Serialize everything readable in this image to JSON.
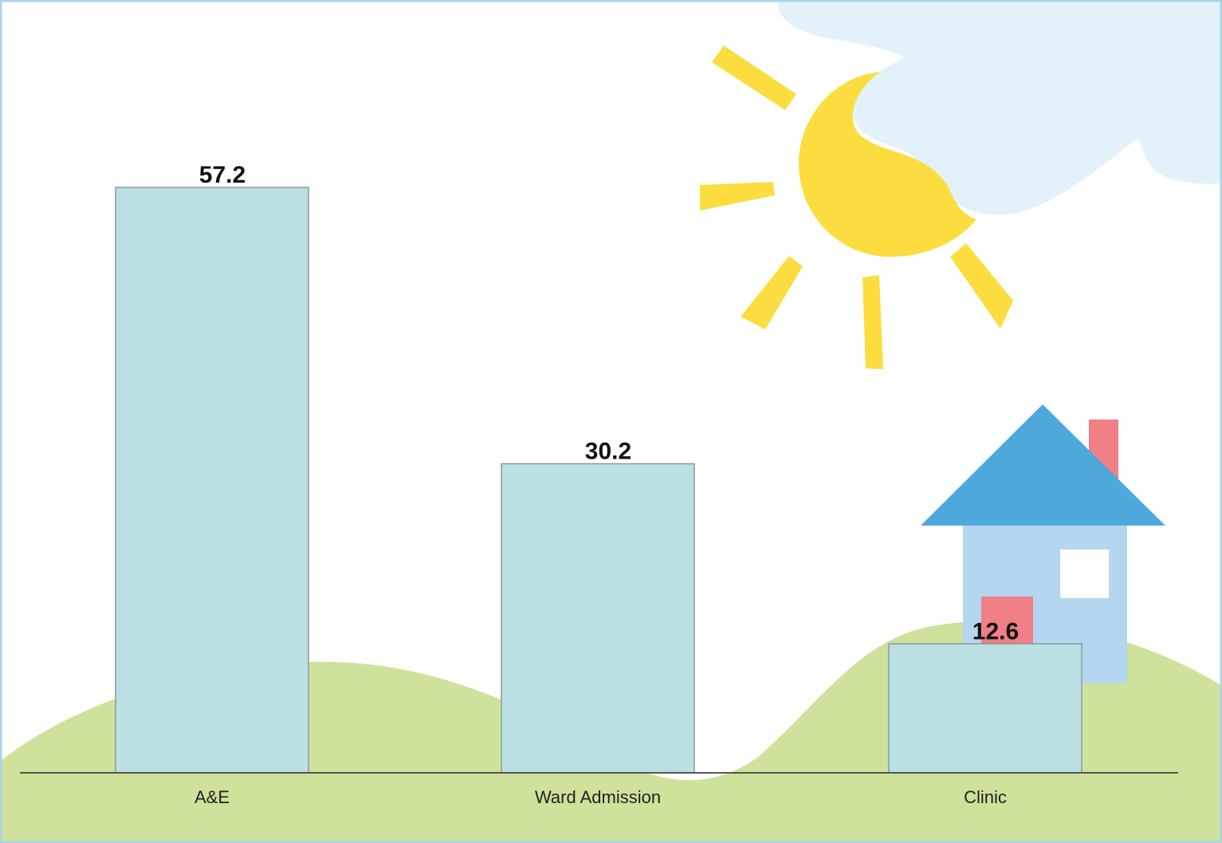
{
  "chart_data": {
    "type": "bar",
    "categories": [
      "A&E",
      "Ward Admission",
      "Clinic"
    ],
    "values": [
      57.2,
      30.2,
      12.6
    ],
    "data_labels": [
      "57.2",
      "30.2",
      "12.6"
    ],
    "title": "",
    "xlabel": "",
    "ylabel": "",
    "ylim": [
      0,
      60
    ],
    "grid": false,
    "legend": "none",
    "bar_color": "#bbe0e3"
  },
  "decorations": {
    "background_icons": [
      "sun-icon",
      "cloud-icon",
      "house-icon",
      "hill-shape"
    ],
    "colors": {
      "sun": "#fbdd3f",
      "cloud": "#e3f2fa",
      "hill": "#cee29b",
      "roof": "#4fa8dc",
      "house_wall": "#b4d6ee",
      "chimney_door": "#f07f86",
      "frame": "#a9d4e8"
    }
  }
}
